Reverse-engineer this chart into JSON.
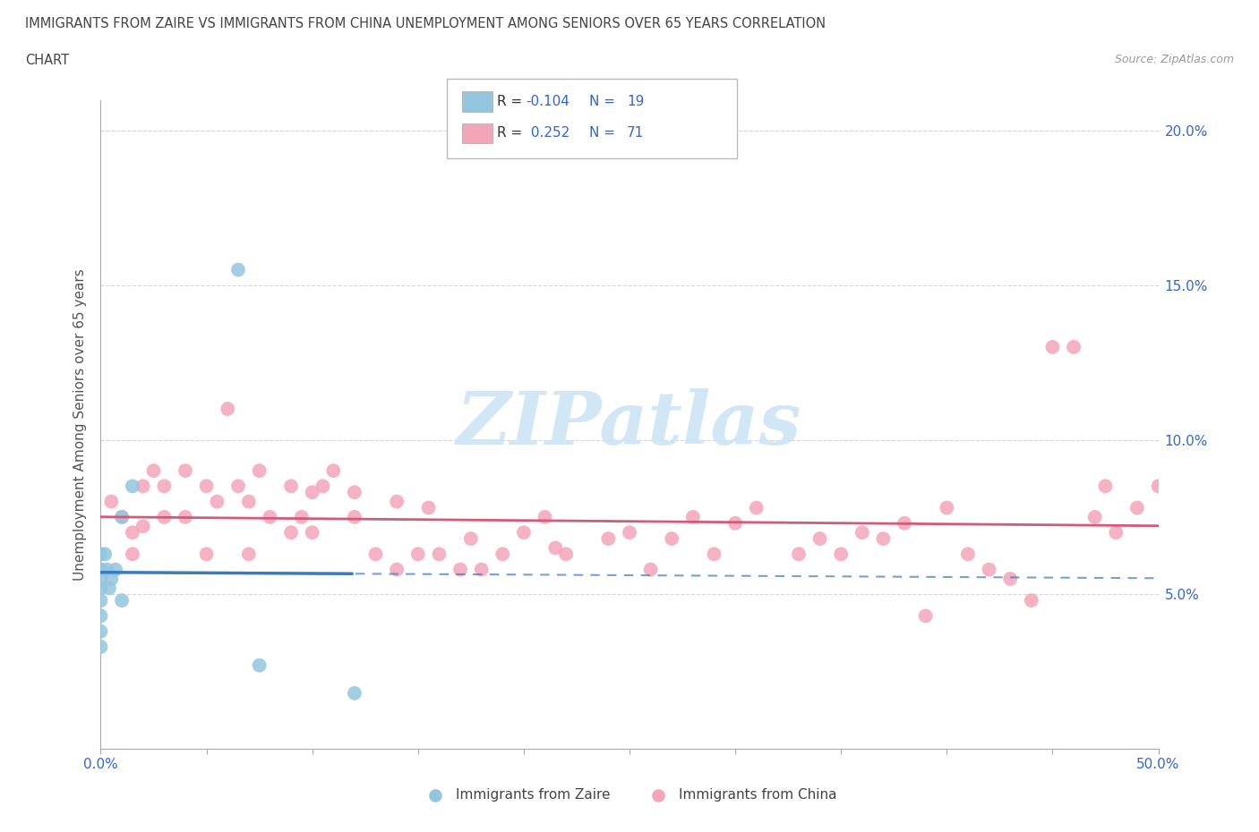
{
  "title_line1": "IMMIGRANTS FROM ZAIRE VS IMMIGRANTS FROM CHINA UNEMPLOYMENT AMONG SENIORS OVER 65 YEARS CORRELATION",
  "title_line2": "CHART",
  "source": "Source: ZipAtlas.com",
  "ylabel": "Unemployment Among Seniors over 65 years",
  "xlim": [
    0.0,
    0.5
  ],
  "ylim": [
    0.0,
    0.21
  ],
  "zaire_color": "#92c5de",
  "china_color": "#f4a5b8",
  "zaire_line_color": "#3a7abf",
  "china_line_color": "#d45a7a",
  "watermark_color": "#cce5f5",
  "background_color": "#ffffff",
  "grid_color": "#cccccc",
  "tick_color": "#3366cc",
  "zaire_x": [
    0.0,
    0.0,
    0.0,
    0.0,
    0.0,
    0.0,
    0.0,
    0.0,
    0.002,
    0.003,
    0.004,
    0.005,
    0.007,
    0.01,
    0.01,
    0.015,
    0.065,
    0.075,
    0.12
  ],
  "zaire_y": [
    0.063,
    0.058,
    0.052,
    0.048,
    0.043,
    0.038,
    0.033,
    0.055,
    0.063,
    0.058,
    0.052,
    0.055,
    0.058,
    0.075,
    0.048,
    0.085,
    0.155,
    0.027,
    0.018
  ],
  "china_x": [
    0.0,
    0.005,
    0.01,
    0.015,
    0.015,
    0.02,
    0.02,
    0.025,
    0.03,
    0.03,
    0.04,
    0.04,
    0.05,
    0.05,
    0.055,
    0.06,
    0.065,
    0.07,
    0.07,
    0.075,
    0.08,
    0.09,
    0.09,
    0.095,
    0.1,
    0.1,
    0.105,
    0.11,
    0.12,
    0.12,
    0.13,
    0.14,
    0.14,
    0.15,
    0.155,
    0.16,
    0.17,
    0.175,
    0.18,
    0.19,
    0.2,
    0.21,
    0.215,
    0.22,
    0.24,
    0.25,
    0.26,
    0.27,
    0.28,
    0.29,
    0.3,
    0.31,
    0.33,
    0.34,
    0.35,
    0.36,
    0.37,
    0.38,
    0.39,
    0.4,
    0.41,
    0.42,
    0.43,
    0.44,
    0.45,
    0.46,
    0.47,
    0.475,
    0.48,
    0.49,
    0.5
  ],
  "china_y": [
    0.058,
    0.08,
    0.075,
    0.07,
    0.063,
    0.085,
    0.072,
    0.09,
    0.085,
    0.075,
    0.09,
    0.075,
    0.085,
    0.063,
    0.08,
    0.11,
    0.085,
    0.08,
    0.063,
    0.09,
    0.075,
    0.085,
    0.07,
    0.075,
    0.083,
    0.07,
    0.085,
    0.09,
    0.083,
    0.075,
    0.063,
    0.08,
    0.058,
    0.063,
    0.078,
    0.063,
    0.058,
    0.068,
    0.058,
    0.063,
    0.07,
    0.075,
    0.065,
    0.063,
    0.068,
    0.07,
    0.058,
    0.068,
    0.075,
    0.063,
    0.073,
    0.078,
    0.063,
    0.068,
    0.063,
    0.07,
    0.068,
    0.073,
    0.043,
    0.078,
    0.063,
    0.058,
    0.055,
    0.048,
    0.13,
    0.13,
    0.075,
    0.085,
    0.07,
    0.078,
    0.085
  ]
}
